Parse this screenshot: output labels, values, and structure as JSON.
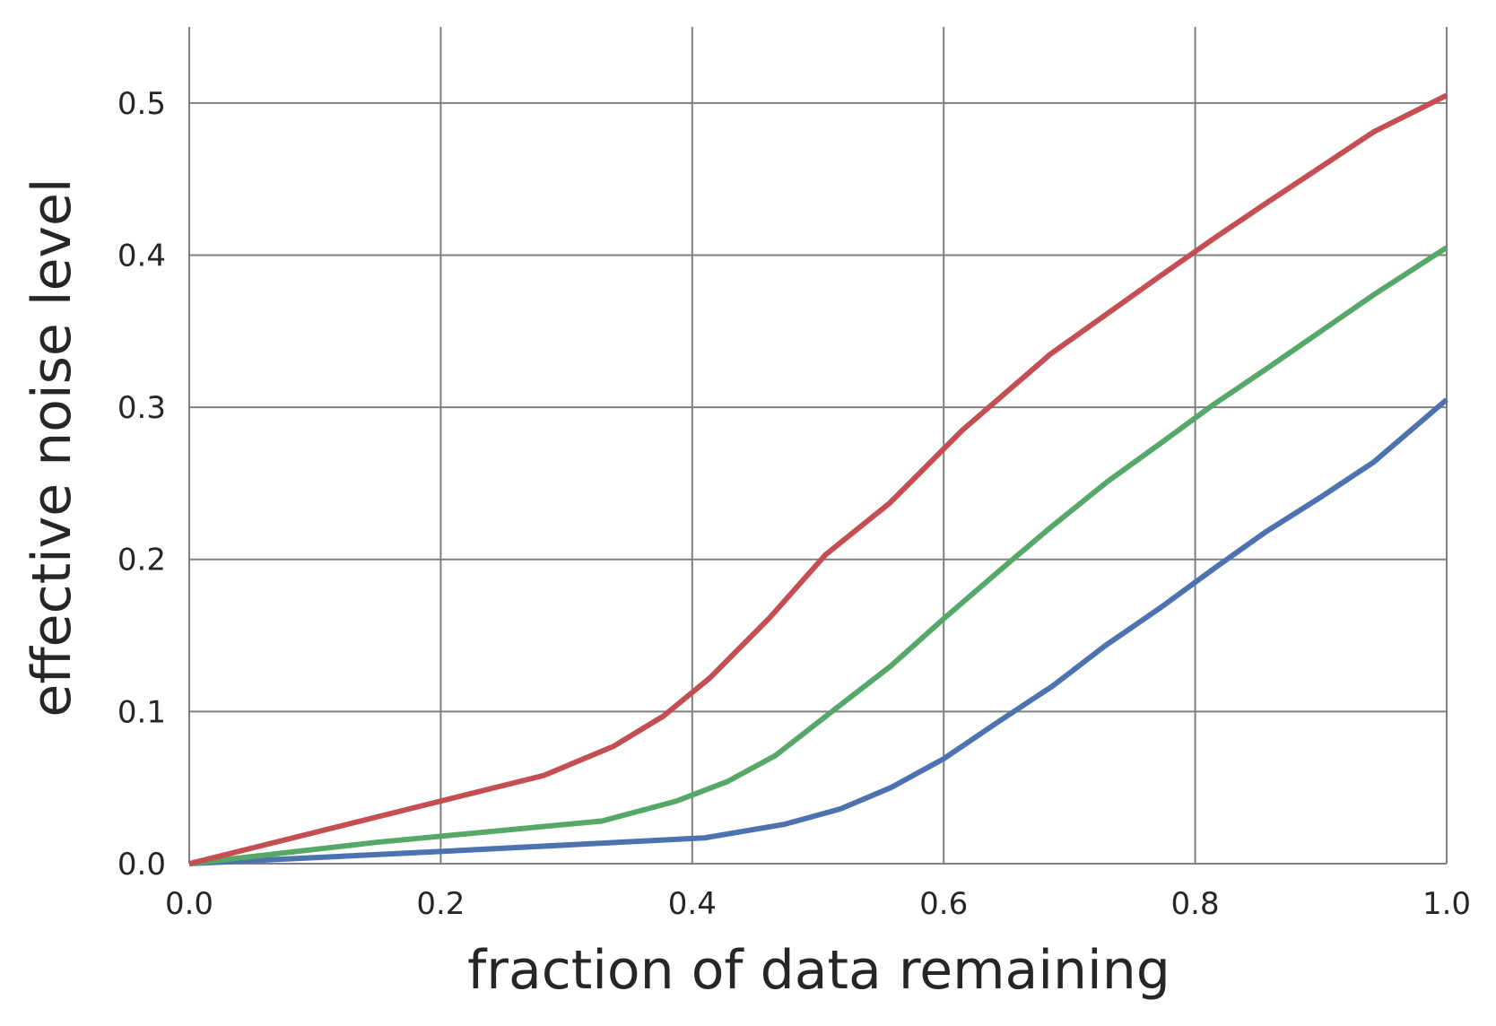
{
  "chart_data": {
    "type": "line",
    "title": "",
    "xlabel": "fraction of data remaining",
    "ylabel": "effective noise level",
    "xlim": [
      0.0,
      1.0
    ],
    "ylim": [
      0.0,
      0.55
    ],
    "xticks": [
      0.0,
      0.2,
      0.4,
      0.6,
      0.8,
      1.0
    ],
    "yticks": [
      0.0,
      0.1,
      0.2,
      0.3,
      0.4,
      0.5
    ],
    "xtick_labels": [
      "0.0",
      "0.2",
      "0.4",
      "0.6",
      "0.8",
      "1.0"
    ],
    "ytick_labels": [
      "0.0",
      "0.1",
      "0.2",
      "0.3",
      "0.4",
      "0.5"
    ],
    "grid": true,
    "series": [
      {
        "color": "#4c72b0",
        "x": [
          0.0,
          0.2,
          0.41,
          0.474,
          0.518,
          0.558,
          0.6,
          0.643,
          0.687,
          0.728,
          0.772,
          0.815,
          0.856,
          0.9,
          0.942,
          1.0
        ],
        "y": [
          0.0,
          0.008,
          0.017,
          0.026,
          0.036,
          0.05,
          0.069,
          0.093,
          0.117,
          0.143,
          0.168,
          0.194,
          0.218,
          0.241,
          0.264,
          0.305
        ]
      },
      {
        "color": "#55a868",
        "x": [
          0.0,
          0.148,
          0.328,
          0.387,
          0.428,
          0.466,
          0.508,
          0.558,
          0.6,
          0.652,
          0.685,
          0.73,
          0.772,
          0.815,
          0.858,
          0.9,
          0.942,
          1.0
        ],
        "y": [
          0.0,
          0.014,
          0.028,
          0.041,
          0.054,
          0.071,
          0.098,
          0.13,
          0.161,
          0.198,
          0.221,
          0.251,
          0.276,
          0.302,
          0.326,
          0.35,
          0.374,
          0.405
        ]
      },
      {
        "color": "#c44e52",
        "x": [
          0.0,
          0.282,
          0.337,
          0.377,
          0.414,
          0.462,
          0.506,
          0.557,
          0.615,
          0.685,
          0.77,
          0.815,
          0.858,
          0.9,
          0.942,
          1.0
        ],
        "y": [
          0.0,
          0.058,
          0.077,
          0.097,
          0.122,
          0.162,
          0.203,
          0.237,
          0.285,
          0.335,
          0.385,
          0.411,
          0.435,
          0.458,
          0.481,
          0.505
        ]
      }
    ]
  }
}
